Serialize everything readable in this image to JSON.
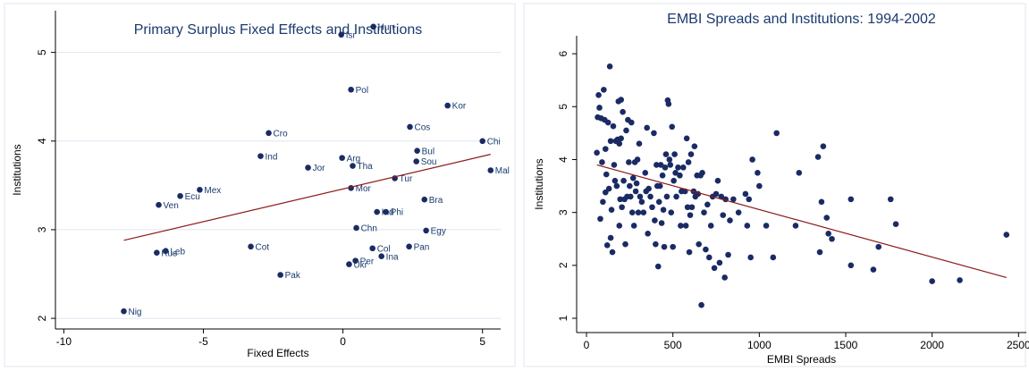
{
  "chart_data": [
    {
      "type": "scatter",
      "title": "Primary Surplus Fixed Effects and Institutions",
      "x_label": "Fixed Effects",
      "y_label": "Institutions",
      "xlim": [
        -10.3,
        5.65
      ],
      "ylim": [
        1.88,
        5.47
      ],
      "xticks": [
        -10,
        -5,
        0,
        5
      ],
      "yticks": [
        2,
        3,
        4,
        5
      ],
      "grid": true,
      "series": [
        {
          "color": "#1a2b64",
          "labels": [
            "Hun",
            "Isr",
            "Pol",
            "Kor",
            "Cos",
            "Cro",
            "Chi",
            "Ind",
            "Arg",
            "Bul",
            "Sou",
            "Jor",
            "Tha",
            "Mal",
            "Tur",
            "Mex",
            "Mor",
            "Ecu",
            "Bra",
            "Ven",
            "Ind",
            "Phi",
            "Chn",
            "Egy",
            "Cot",
            "Pan",
            "Col",
            "Leb",
            "Rus",
            "Ina",
            "Per",
            "Ukr",
            "Pak",
            "Nig"
          ],
          "x": [
            1.09,
            -0.06,
            0.29,
            3.75,
            2.4,
            -2.66,
            5.0,
            -2.95,
            -0.03,
            2.66,
            2.63,
            -1.25,
            0.35,
            5.29,
            1.86,
            -5.13,
            0.29,
            -5.83,
            2.92,
            -6.6,
            1.22,
            1.54,
            0.48,
            2.98,
            -3.3,
            2.37,
            1.06,
            -6.35,
            -6.67,
            1.38,
            0.45,
            0.22,
            -2.24,
            -7.85
          ],
          "values": [
            5.29,
            5.2,
            4.58,
            4.4,
            4.16,
            4.09,
            4.0,
            3.83,
            3.81,
            3.89,
            3.77,
            3.7,
            3.72,
            3.67,
            3.58,
            3.45,
            3.47,
            3.38,
            3.34,
            3.28,
            3.2,
            3.2,
            3.02,
            2.99,
            2.81,
            2.81,
            2.79,
            2.76,
            2.74,
            2.7,
            2.65,
            2.61,
            2.49,
            2.08
          ]
        }
      ],
      "fit_line": {
        "color": "#8b1a1a",
        "x": [
          -7.85,
          5.29
        ],
        "values": [
          2.88,
          3.85
        ]
      }
    },
    {
      "type": "scatter",
      "title": "EMBI Spreads and Institutions: 1994-2002",
      "x_label": "EMBI Spreads",
      "y_label": "Institutions",
      "xlim": [
        -57,
        2545
      ],
      "ylim": [
        0.73,
        6.34
      ],
      "xticks": [
        0,
        500,
        1000,
        1500,
        2000,
        2500
      ],
      "yticks": [
        1,
        2,
        3,
        4,
        5,
        6
      ],
      "grid": false,
      "series": [
        {
          "color": "#1a2b64",
          "x": [
            60,
            65,
            70,
            75,
            80,
            85,
            90,
            95,
            100,
            105,
            110,
            110,
            115,
            120,
            125,
            130,
            135,
            140,
            140,
            145,
            150,
            155,
            160,
            165,
            170,
            175,
            180,
            185,
            190,
            190,
            195,
            200,
            200,
            205,
            210,
            215,
            220,
            225,
            230,
            235,
            240,
            245,
            250,
            255,
            260,
            265,
            270,
            275,
            280,
            285,
            290,
            295,
            300,
            305,
            310,
            320,
            330,
            340,
            345,
            350,
            355,
            360,
            370,
            380,
            390,
            395,
            400,
            405,
            410,
            415,
            420,
            425,
            430,
            435,
            440,
            445,
            450,
            455,
            460,
            465,
            470,
            475,
            480,
            485,
            490,
            495,
            500,
            505,
            510,
            515,
            520,
            530,
            540,
            545,
            550,
            560,
            570,
            575,
            580,
            585,
            590,
            595,
            600,
            605,
            610,
            620,
            625,
            630,
            640,
            645,
            650,
            660,
            665,
            670,
            680,
            690,
            700,
            710,
            720,
            730,
            740,
            750,
            760,
            770,
            780,
            790,
            800,
            805,
            820,
            830,
            850,
            880,
            920,
            930,
            940,
            950,
            960,
            990,
            1000,
            1040,
            1080,
            1100,
            1210,
            1230,
            1340,
            1350,
            1360,
            1370,
            1390,
            1400,
            1420,
            1530,
            1530,
            1660,
            1690,
            1760,
            1790,
            2000,
            2160,
            2430
          ],
          "values": [
            4.13,
            4.8,
            5.22,
            4.98,
            2.88,
            4.78,
            3.95,
            3.2,
            5.32,
            4.75,
            4.2,
            3.38,
            3.72,
            2.38,
            4.7,
            3.45,
            5.76,
            2.52,
            4.35,
            3.05,
            2.25,
            4.63,
            3.9,
            3.6,
            4.35,
            3.5,
            4.38,
            5.1,
            4.3,
            2.75,
            3.25,
            4.4,
            5.13,
            3.1,
            4.9,
            3.6,
            3.25,
            2.4,
            4.55,
            3.3,
            4.75,
            3.95,
            3.5,
            3.3,
            4.7,
            3.0,
            3.65,
            2.75,
            3.95,
            3.4,
            3.55,
            4.0,
            3.0,
            4.3,
            3.3,
            3.2,
            3.0,
            3.75,
            3.4,
            4.6,
            2.6,
            3.45,
            3.3,
            3.1,
            4.5,
            2.85,
            2.4,
            3.9,
            3.5,
            1.98,
            3.2,
            3.5,
            3.9,
            2.8,
            3.7,
            3.05,
            2.35,
            3.85,
            4.1,
            3.3,
            5.12,
            5.05,
            4.0,
            3.9,
            3.0,
            4.62,
            2.35,
            3.6,
            4.1,
            3.75,
            3.3,
            3.85,
            3.7,
            2.75,
            3.4,
            3.85,
            3.4,
            2.75,
            4.4,
            3.1,
            3.95,
            2.25,
            2.95,
            4.1,
            3.1,
            3.4,
            4.25,
            3.3,
            3.7,
            3.35,
            2.4,
            3.7,
            1.25,
            3.75,
            3.0,
            2.3,
            3.15,
            2.15,
            2.75,
            3.3,
            1.95,
            3.35,
            3.6,
            2.05,
            3.3,
            2.95,
            1.77,
            3.25,
            2.2,
            2.85,
            3.25,
            3.0,
            3.35,
            2.75,
            3.25,
            2.15,
            4.0,
            3.75,
            3.5,
            2.75,
            2.15,
            4.5,
            2.75,
            3.75,
            4.05,
            2.25,
            3.2,
            4.25,
            2.9,
            2.6,
            2.5,
            3.25,
            2.0,
            1.92,
            2.35,
            3.25,
            2.78,
            1.7,
            1.72,
            2.58
          ]
        }
      ],
      "fit_line": {
        "color": "#8b1a1a",
        "x": [
          60,
          2430
        ],
        "values": [
          3.9,
          1.77
        ]
      }
    }
  ]
}
